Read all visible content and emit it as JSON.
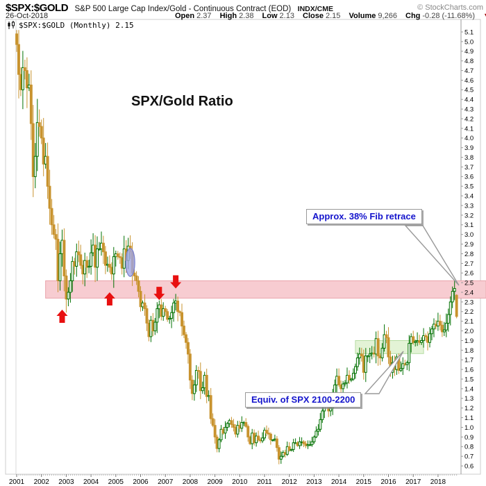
{
  "header": {
    "symbol": "$SPX:$GOLD",
    "description": "S&P 500 Large Cap Index/Gold - Continuous Contract (EOD)",
    "exchange": "INDX/CME",
    "copyright": "© StockCharts.com",
    "date": "26-Oct-2018",
    "quote": {
      "open_label": "Open",
      "open": "2.37",
      "high_label": "High",
      "high": "2.38",
      "low_label": "Low",
      "low": "2.13",
      "close_label": "Close",
      "close": "2.15",
      "volume_label": "Volume",
      "volume": "9,266",
      "chg_label": "Chg",
      "chg": "-0.28 (-11.68%)",
      "chg_direction": "down"
    }
  },
  "legend": {
    "label": "$SPX:$GOLD (Monthly) 2.15"
  },
  "chart_title": "SPX/Gold Ratio",
  "callouts": {
    "fib": "Approx. 38% Fib retrace",
    "spx": "Equiv. of SPX 2100-2200"
  },
  "chart_data": {
    "type": "candlestick",
    "title": "SPX/Gold Ratio",
    "frequency": "monthly",
    "start": "2001-01",
    "end": "2018-10",
    "grid": false,
    "y_axis": {
      "min": 0.6,
      "max": 5.1,
      "step": 0.1
    },
    "x_ticks": [
      2001,
      2002,
      2003,
      2004,
      2005,
      2006,
      2007,
      2008,
      2009,
      2010,
      2011,
      2012,
      2013,
      2014,
      2015,
      2016,
      2017,
      2018
    ],
    "first_open": 5.08,
    "closes": [
      4.97,
      4.66,
      4.5,
      4.73,
      4.7,
      4.52,
      4.55,
      4.15,
      3.6,
      3.81,
      4.16,
      4.12,
      4.0,
      3.73,
      3.81,
      3.5,
      3.27,
      3.1,
      3.0,
      2.95,
      2.52,
      2.8,
      2.94,
      2.57,
      2.33,
      2.4,
      2.52,
      2.72,
      2.67,
      2.82,
      2.79,
      2.68,
      2.59,
      2.73,
      2.66,
      2.67,
      2.81,
      2.89,
      2.66,
      2.85,
      2.85,
      2.91,
      2.82,
      2.68,
      2.69,
      2.66,
      2.59,
      2.77,
      2.8,
      2.77,
      2.76,
      2.65,
      2.85,
      2.73,
      2.88,
      2.82,
      2.6,
      2.57,
      2.52,
      2.41,
      2.25,
      2.29,
      2.23,
      2.08,
      1.94,
      2.11,
      2.0,
      2.09,
      2.23,
      2.27,
      2.15,
      2.23,
      2.2,
      2.12,
      2.13,
      2.19,
      2.29,
      2.31,
      2.2,
      2.19,
      2.05,
      1.96,
      1.88,
      1.76,
      1.49,
      1.35,
      1.44,
      1.59,
      1.58,
      1.38,
      1.41,
      1.54,
      1.32,
      1.33,
      1.09,
      1.02,
      0.9,
      0.78,
      0.87,
      0.98,
      0.94,
      1.0,
      1.04,
      1.07,
      1.03,
      1.0,
      0.93,
      1.02,
      0.99,
      1.05,
      1.05,
      1.01,
      0.9,
      0.83,
      0.94,
      0.84,
      0.91,
      0.87,
      0.86,
      0.89,
      0.97,
      0.94,
      0.93,
      0.87,
      0.87,
      0.88,
      0.79,
      0.67,
      0.7,
      0.74,
      0.72,
      0.8,
      0.76,
      0.77,
      0.84,
      0.84,
      0.81,
      0.85,
      0.85,
      0.83,
      0.81,
      0.82,
      0.82,
      0.85,
      0.9,
      0.96,
      0.98,
      1.08,
      1.17,
      1.3,
      1.28,
      1.17,
      1.2,
      1.33,
      1.44,
      1.53,
      1.44,
      1.4,
      1.45,
      1.46,
      1.54,
      1.49,
      1.5,
      1.56,
      1.63,
      1.72,
      1.76,
      1.74,
      1.57,
      1.74,
      1.74,
      1.76,
      1.77,
      1.76,
      1.92,
      1.74,
      1.72,
      1.82,
      1.96,
      1.93,
      1.73,
      1.57,
      1.67,
      1.6,
      1.73,
      1.59,
      1.61,
      1.66,
      1.65,
      1.67,
      1.87,
      1.94,
      1.88,
      1.89,
      1.9,
      1.88,
      1.9,
      1.95,
      1.94,
      1.88,
      1.97,
      2.02,
      2.07,
      2.05,
      2.1,
      2.06,
      1.99,
      2.01,
      2.08,
      2.17,
      2.3,
      2.41,
      2.44,
      2.15
    ],
    "last_candle": {
      "open": 2.37,
      "high": 2.38,
      "low": 2.13,
      "close": 2.15
    },
    "colors": {
      "up": "#007000",
      "down": "#c8932e",
      "arrow": "#e81010"
    },
    "bands": [
      {
        "name": "fib-retrace-zone",
        "value_top": 2.52,
        "value_bottom": 2.34,
        "month_from": 14,
        "extend_right": true,
        "fill": "#f7ccd1",
        "border": "#e9a3ab"
      },
      {
        "name": "spx-2100-2200-zone",
        "value_top": 1.9,
        "value_bottom": 1.765,
        "month_from": 164,
        "month_to": 197,
        "fill": "#e3f3d6",
        "border": "#b6dda3"
      }
    ],
    "arrows": [
      {
        "dir": "up",
        "month": 22,
        "tip_value": 2.22
      },
      {
        "dir": "up",
        "month": 45,
        "tip_value": 2.4
      },
      {
        "dir": "down",
        "month": 69,
        "tip_value": 2.32
      },
      {
        "dir": "down",
        "month": 77,
        "tip_value": 2.44
      }
    ],
    "ellipse": {
      "month": 55,
      "value_center": 2.71,
      "month_half_span": 2.2,
      "value_half_span": 0.145
    }
  }
}
